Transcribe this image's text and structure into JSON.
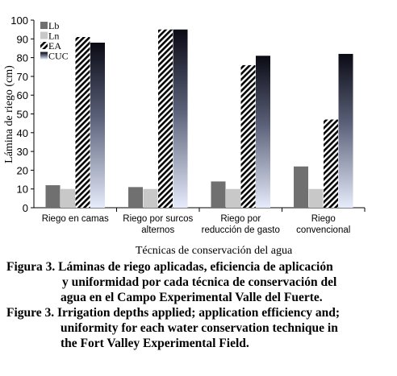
{
  "chart_data": {
    "type": "bar",
    "ylabel": "Lámina de riego (cm)",
    "xlabel": "Técnicas de conservación del agua",
    "ylim": [
      0,
      100
    ],
    "yticks": [
      0,
      10,
      20,
      30,
      40,
      50,
      60,
      70,
      80,
      90,
      100
    ],
    "categories": [
      [
        "Riego en camas"
      ],
      [
        "Riego por surcos",
        "alternos"
      ],
      [
        "Riego por",
        "reducción de gasto"
      ],
      [
        "Riego",
        "convencional"
      ]
    ],
    "series": [
      {
        "name": "Lb",
        "values": [
          12,
          11,
          14,
          22
        ],
        "color": "#707070"
      },
      {
        "name": "Ln",
        "values": [
          10,
          10,
          10,
          10
        ],
        "color": "#c8c8c8"
      },
      {
        "name": "EA",
        "values": [
          91,
          95,
          76,
          47
        ],
        "color": "#000000"
      },
      {
        "name": "CUC",
        "values": [
          88,
          95,
          81,
          82
        ],
        "color": "#1a1a2a"
      }
    ],
    "legend_position": "top-left",
    "grid": false
  },
  "caption": {
    "es_label": "Figura 3.",
    "es_line1": "Láminas de riego aplicadas, eficiencia de aplicación",
    "es_line2": "y uniformidad por cada técnica de conservación del",
    "es_line3": "agua en el Campo Experimental Valle del Fuerte.",
    "en_label": "Figure 3.",
    "en_line1": "Irrigation depths applied; application efficiency and;",
    "en_line2": "uniformity for each water conservation technique in",
    "en_line3": "the Fort Valley Experimental Field."
  }
}
